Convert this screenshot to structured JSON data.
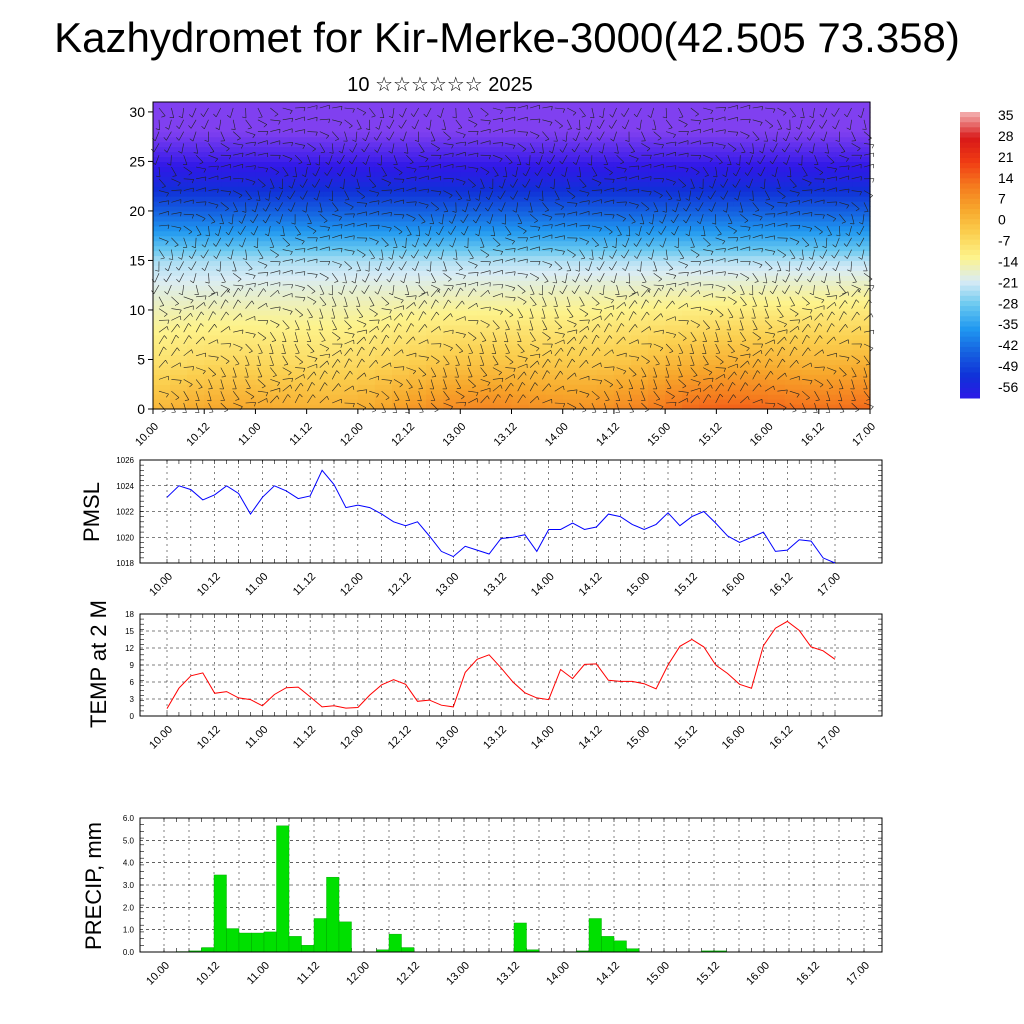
{
  "header": {
    "title": "Kazhydromet for Kir-Merke-3000(42.505 73.358)",
    "subtitle": "10 ☆☆☆☆☆☆ 2025"
  },
  "time_ticks": [
    "10.00",
    "10.12",
    "11.00",
    "11.12",
    "12.00",
    "12.12",
    "13.00",
    "13.12",
    "14.00",
    "14.12",
    "15.00",
    "15.12",
    "16.00",
    "16.12",
    "17.00"
  ],
  "chart_data": [
    {
      "type": "heatmap",
      "panel": "cross-section",
      "title": "",
      "x_ticks": [
        "10.00",
        "10.12",
        "11.00",
        "11.12",
        "12.00",
        "12.12",
        "13.00",
        "13.12",
        "14.00",
        "14.12",
        "15.00",
        "15.12",
        "16.00",
        "16.12",
        "17.00"
      ],
      "xlim": [
        0,
        168
      ],
      "yticks": [
        0,
        5,
        10,
        15,
        20,
        25,
        30
      ],
      "ylim": [
        0,
        31
      ],
      "colorbar": {
        "labels": [
          "35",
          "28",
          "21",
          "14",
          "7",
          "0",
          "-7",
          "-14",
          "-21",
          "-28",
          "-35",
          "-42",
          "-49",
          "-56"
        ],
        "values": [
          35,
          28,
          21,
          14,
          7,
          0,
          -7,
          -14,
          -21,
          -28,
          -35,
          -42,
          -49,
          -56
        ],
        "colors": [
          "#f2a6a6",
          "#d81818",
          "#f03c14",
          "#f57a1e",
          "#f7a82c",
          "#fbd050",
          "#fdf38c",
          "#d9ecf5",
          "#68c8f0",
          "#2098f0",
          "#1560e0",
          "#1030d8",
          "#3018e8",
          "#8040f0"
        ]
      },
      "temperature_profile": {
        "heights": [
          0,
          5,
          10,
          13,
          15,
          18,
          20,
          23,
          25,
          28,
          31
        ],
        "temps": [
          4,
          -4,
          -10,
          -14,
          -17,
          -28,
          -35,
          -45,
          -50,
          -56,
          -58
        ]
      },
      "note": "filled contours of air temperature with wind barbs"
    },
    {
      "type": "line",
      "panel": "pmsl",
      "ylabel": "PMSL",
      "ylim": [
        1018,
        1026
      ],
      "yticks": [
        1018,
        1020,
        1022,
        1024,
        1026
      ],
      "x_ticks": [
        "10.00",
        "10.12",
        "11.00",
        "11.12",
        "12.00",
        "12.12",
        "13.00",
        "13.12",
        "14.00",
        "14.12",
        "15.00",
        "15.12",
        "16.00",
        "16.12",
        "17.00"
      ],
      "x": [
        0,
        3,
        6,
        9,
        12,
        15,
        18,
        21,
        24,
        27,
        30,
        33,
        36,
        39,
        42,
        45,
        48,
        51,
        54,
        57,
        60,
        63,
        66,
        69,
        72,
        75,
        78,
        81,
        84,
        87,
        90,
        93,
        96,
        99,
        102,
        105,
        108,
        111,
        114,
        117,
        120,
        123,
        126,
        129,
        132,
        135,
        138,
        141,
        144,
        147,
        150,
        153,
        156,
        159,
        162,
        165,
        168
      ],
      "values": [
        1023.1,
        1024.0,
        1023.7,
        1022.9,
        1023.3,
        1024.0,
        1023.4,
        1021.8,
        1023.1,
        1024.0,
        1023.6,
        1023.0,
        1023.2,
        1025.2,
        1024.1,
        1022.3,
        1022.5,
        1022.3,
        1021.8,
        1021.2,
        1020.9,
        1021.2,
        1020.1,
        1018.9,
        1018.5,
        1019.3,
        1019.0,
        1018.7,
        1019.9,
        1020.0,
        1020.2,
        1018.9,
        1020.6,
        1020.6,
        1021.1,
        1020.6,
        1020.8,
        1021.8,
        1021.6,
        1021.0,
        1020.6,
        1021.0,
        1021.9,
        1020.9,
        1021.6,
        1022.0,
        1021.1,
        1020.1,
        1019.6,
        1020.0,
        1020.4,
        1018.9,
        1019.0,
        1019.8,
        1019.7,
        1018.4,
        1018.0
      ],
      "color": "#0000ff"
    },
    {
      "type": "line",
      "panel": "t2m",
      "ylabel": "TEMP at 2 M",
      "ylim": [
        0,
        18
      ],
      "yticks": [
        0,
        3,
        6,
        9,
        12,
        15,
        18
      ],
      "x_ticks": [
        "10.00",
        "10.12",
        "11.00",
        "11.12",
        "12.00",
        "12.12",
        "13.00",
        "13.12",
        "14.00",
        "14.12",
        "15.00",
        "15.12",
        "16.00",
        "16.12",
        "17.00"
      ],
      "x": [
        0,
        3,
        6,
        9,
        12,
        15,
        18,
        21,
        24,
        27,
        30,
        33,
        36,
        39,
        42,
        45,
        48,
        51,
        54,
        57,
        60,
        63,
        66,
        69,
        72,
        75,
        78,
        81,
        84,
        87,
        90,
        93,
        96,
        99,
        102,
        105,
        108,
        111,
        114,
        117,
        120,
        123,
        126,
        129,
        132,
        135,
        138,
        141,
        144,
        147,
        150,
        153,
        156,
        159,
        162,
        165,
        168
      ],
      "values": [
        1.3,
        4.9,
        7.1,
        7.6,
        4.0,
        4.3,
        3.2,
        2.9,
        1.8,
        3.8,
        5.0,
        5.1,
        3.4,
        1.6,
        1.8,
        1.4,
        1.5,
        3.7,
        5.5,
        6.4,
        5.6,
        2.6,
        2.8,
        1.9,
        1.6,
        7.7,
        10.0,
        10.8,
        8.5,
        6.0,
        4.1,
        3.2,
        2.9,
        8.2,
        6.6,
        9.1,
        9.2,
        6.3,
        6.1,
        6.1,
        5.7,
        4.8,
        9.0,
        12.3,
        13.5,
        12.2,
        9.0,
        7.5,
        5.6,
        4.9,
        12.4,
        15.5,
        16.7,
        15.1,
        12.2,
        11.5,
        10.0
      ],
      "color": "#ff0000"
    },
    {
      "type": "bar",
      "panel": "precip",
      "ylabel": "PRECIP, mm",
      "ylim": [
        0,
        6.0
      ],
      "yticks": [
        "0.0",
        "1.0",
        "2.0",
        "3.0",
        "4.0",
        "5.0",
        "6.0"
      ],
      "x_ticks": [
        "10.00",
        "10.12",
        "11.00",
        "11.12",
        "12.00",
        "12.12",
        "13.00",
        "13.12",
        "14.00",
        "14.12",
        "15.00",
        "15.12",
        "16.00",
        "16.12",
        "17.00"
      ],
      "x": [
        0,
        3,
        6,
        9,
        12,
        15,
        18,
        21,
        24,
        27,
        30,
        33,
        36,
        39,
        42,
        45,
        48,
        51,
        54,
        57,
        60,
        63,
        66,
        69,
        72,
        75,
        78,
        81,
        84,
        87,
        90,
        93,
        96,
        99,
        102,
        105,
        108,
        111,
        114,
        117,
        120,
        123,
        126,
        129,
        132,
        135,
        138,
        141,
        144,
        147,
        150,
        153,
        156,
        159,
        162,
        165
      ],
      "values": [
        0,
        0.02,
        0.05,
        0.2,
        3.45,
        1.05,
        0.85,
        0.85,
        0.9,
        5.65,
        0.7,
        0.3,
        1.5,
        3.35,
        1.35,
        0,
        0,
        0.1,
        0.8,
        0.2,
        0,
        0,
        0,
        0,
        0,
        0,
        0,
        0,
        1.3,
        0.1,
        0,
        0,
        0,
        0.05,
        1.5,
        0.7,
        0.5,
        0.15,
        0,
        0,
        0,
        0,
        0,
        0.05,
        0.05,
        0,
        0,
        0,
        0,
        0,
        0,
        0,
        0,
        0,
        0,
        0
      ],
      "color": "#00e000"
    }
  ]
}
